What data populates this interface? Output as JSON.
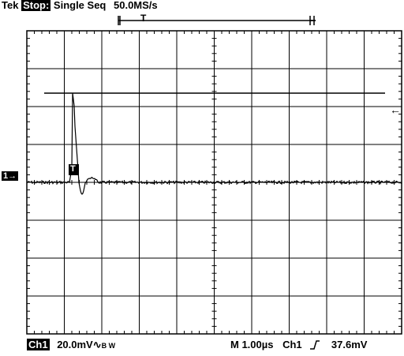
{
  "header": {
    "brand": "Tek",
    "state": "Stop:",
    "mode": "Single Seq",
    "sample_rate": "50.0MS/s",
    "trigger_marker": "T"
  },
  "screen": {
    "channel_marker": "1→",
    "trigger_tag": "T",
    "level_arrow": "←",
    "trace_color": "#000000",
    "grid_color": "#000000"
  },
  "footer": {
    "channel": "Ch1",
    "volts_per_div": "20.0mV",
    "coupling_icon": "∿",
    "bw_label": "B W",
    "timebase": "M 1.00µs",
    "trigger_source": "Ch1",
    "trigger_slope_icon": "rising-edge",
    "trigger_level": "37.6mV"
  }
}
